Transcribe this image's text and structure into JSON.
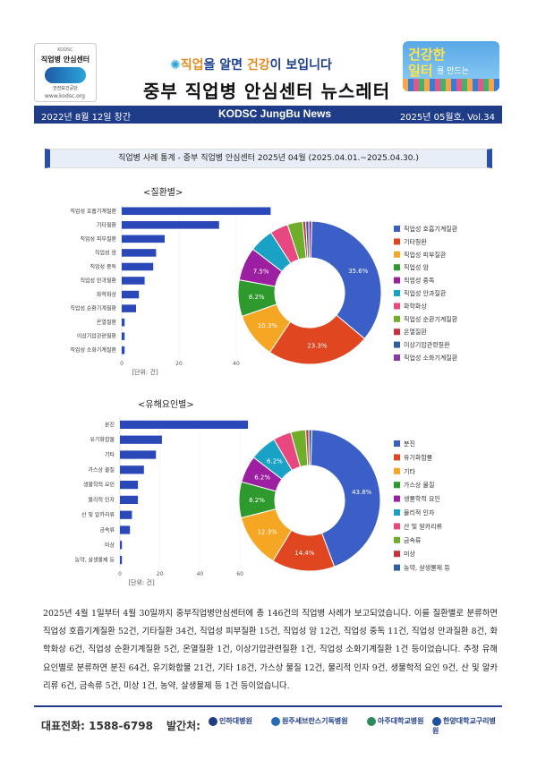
{
  "header": {
    "logo_small": "KODSC",
    "logo_name": "직업병 안심센터",
    "logo_sub": "안전보건공단",
    "logo_url": "www.kodsc.org",
    "slogan_a": "직업",
    "slogan_b": "을 알면 ",
    "slogan_c": "건강",
    "slogan_d": "이 보입니다",
    "title": "중부 직업병 안심센터 뉴스레터",
    "badge_line1": "건강한",
    "badge_line2": "일터",
    "badge_line3": "를 만드는"
  },
  "band": {
    "founded": "2022년 8월 12일 창간",
    "name": "KODSC JungBu News",
    "issue": "2025년 05월호, Vol.34"
  },
  "section_title": "직업병 사례 통계 - 중부 직업병 안심센터   2025년 04월 (2025.04.01.~2025.04.30.)",
  "chart_data": [
    {
      "type": "bar",
      "title": "<질환별>",
      "categories": [
        "직업성 호흡기계질환",
        "기타질환",
        "직업성 피부질환",
        "직업성 암",
        "직업성 중독",
        "직업성 안과질환",
        "화학화상",
        "직업성 순환기계질환",
        "온열질환",
        "이상기압관련질환",
        "직업성 소화기계질환"
      ],
      "values": [
        52,
        34,
        15,
        12,
        11,
        8,
        6,
        5,
        1,
        1,
        1
      ],
      "xticks": [
        0,
        20,
        40
      ],
      "xlim": [
        0,
        55
      ],
      "unit": "[단위: 건]"
    },
    {
      "type": "pie",
      "categories": [
        "직업성 호흡기계질환",
        "기타질환",
        "직업성 피부질환",
        "직업성 암",
        "직업성 중독",
        "직업성 안과질환",
        "화학화상",
        "직업성 순환기계질환",
        "온열질환",
        "이상기압관련질환",
        "직업성 소화기계질환"
      ],
      "values": [
        52,
        34,
        15,
        12,
        11,
        8,
        6,
        5,
        1,
        1,
        1
      ],
      "labels": [
        "35.6%",
        "23.3%",
        "10.3%",
        "8.2%",
        "7.5%",
        "",
        "",
        "",
        "",
        "",
        ""
      ],
      "colors": [
        "#3b5fc6",
        "#e0461f",
        "#f5a623",
        "#2e9a2e",
        "#9b1fa0",
        "#1aa1c6",
        "#e8477f",
        "#6fae2a",
        "#c8323a",
        "#2f5f9e",
        "#8a3aa3"
      ]
    },
    {
      "type": "bar",
      "title": "<유해요인별>",
      "categories": [
        "분진",
        "유기화합물",
        "기타",
        "가스상 물질",
        "생물학적 요인",
        "물리적 인자",
        "산 및 알카리류",
        "금속류",
        "미상",
        "농약, 살생물제 등"
      ],
      "values": [
        64,
        21,
        18,
        12,
        9,
        9,
        6,
        5,
        1,
        1
      ],
      "xticks": [
        0,
        20,
        40,
        60
      ],
      "xlim": [
        0,
        68
      ],
      "unit": "[단위: 건]"
    },
    {
      "type": "pie",
      "categories": [
        "분진",
        "유기화합물",
        "기타",
        "가스상 물질",
        "생물학적 요인",
        "물리적 인자",
        "산 및 알카리류",
        "금속류",
        "미상",
        "농약, 살생물제 등"
      ],
      "values": [
        64,
        21,
        18,
        12,
        9,
        9,
        6,
        5,
        1,
        1
      ],
      "labels": [
        "43.8%",
        "14.4%",
        "12.3%",
        "8.2%",
        "6.2%",
        "6.2%",
        "",
        "",
        "",
        ""
      ],
      "colors": [
        "#3b5fc6",
        "#e0461f",
        "#f5a623",
        "#2e9a2e",
        "#9b1fa0",
        "#1aa1c6",
        "#e8477f",
        "#6fae2a",
        "#c8323a",
        "#2f5f9e"
      ]
    }
  ],
  "paragraph": "2025년 4월 1일부터 4월 30일까지 중부직업병안심센터에 총 146건의 직업병 사례가 보고되었습니다. 이를 질환별로 분류하면 직업성 호흡기계질환 52건, 기타질환 34건, 직업성 피부질환 15건, 직업성 암 12건, 직업성 중독 11건, 직업성 안과질환 8건, 화학화상 6건, 직업성 순환기계질환 5건, 온열질환 1건, 이상기압관련질환 1건, 직업성 소화기계질환 1건 등이었습니다. 추정 유해요인별로 분류하면 분진 64건, 유기화합물 21건, 기타 18건, 가스상 물질 12건, 물리적 인자 9건, 생물학적 요인 9건, 산 및 알카리류 6건, 금속류 5건, 미상 1건, 농약, 살생물제 등 1건 등이었습니다.",
  "footer": {
    "phone": "대표전화: 1588-6798",
    "publisher": "발간처:",
    "hospitals": [
      "인하대병원",
      "원주세브란스기독병원",
      "아주대학교병원",
      "한양대학교구리병원"
    ]
  }
}
